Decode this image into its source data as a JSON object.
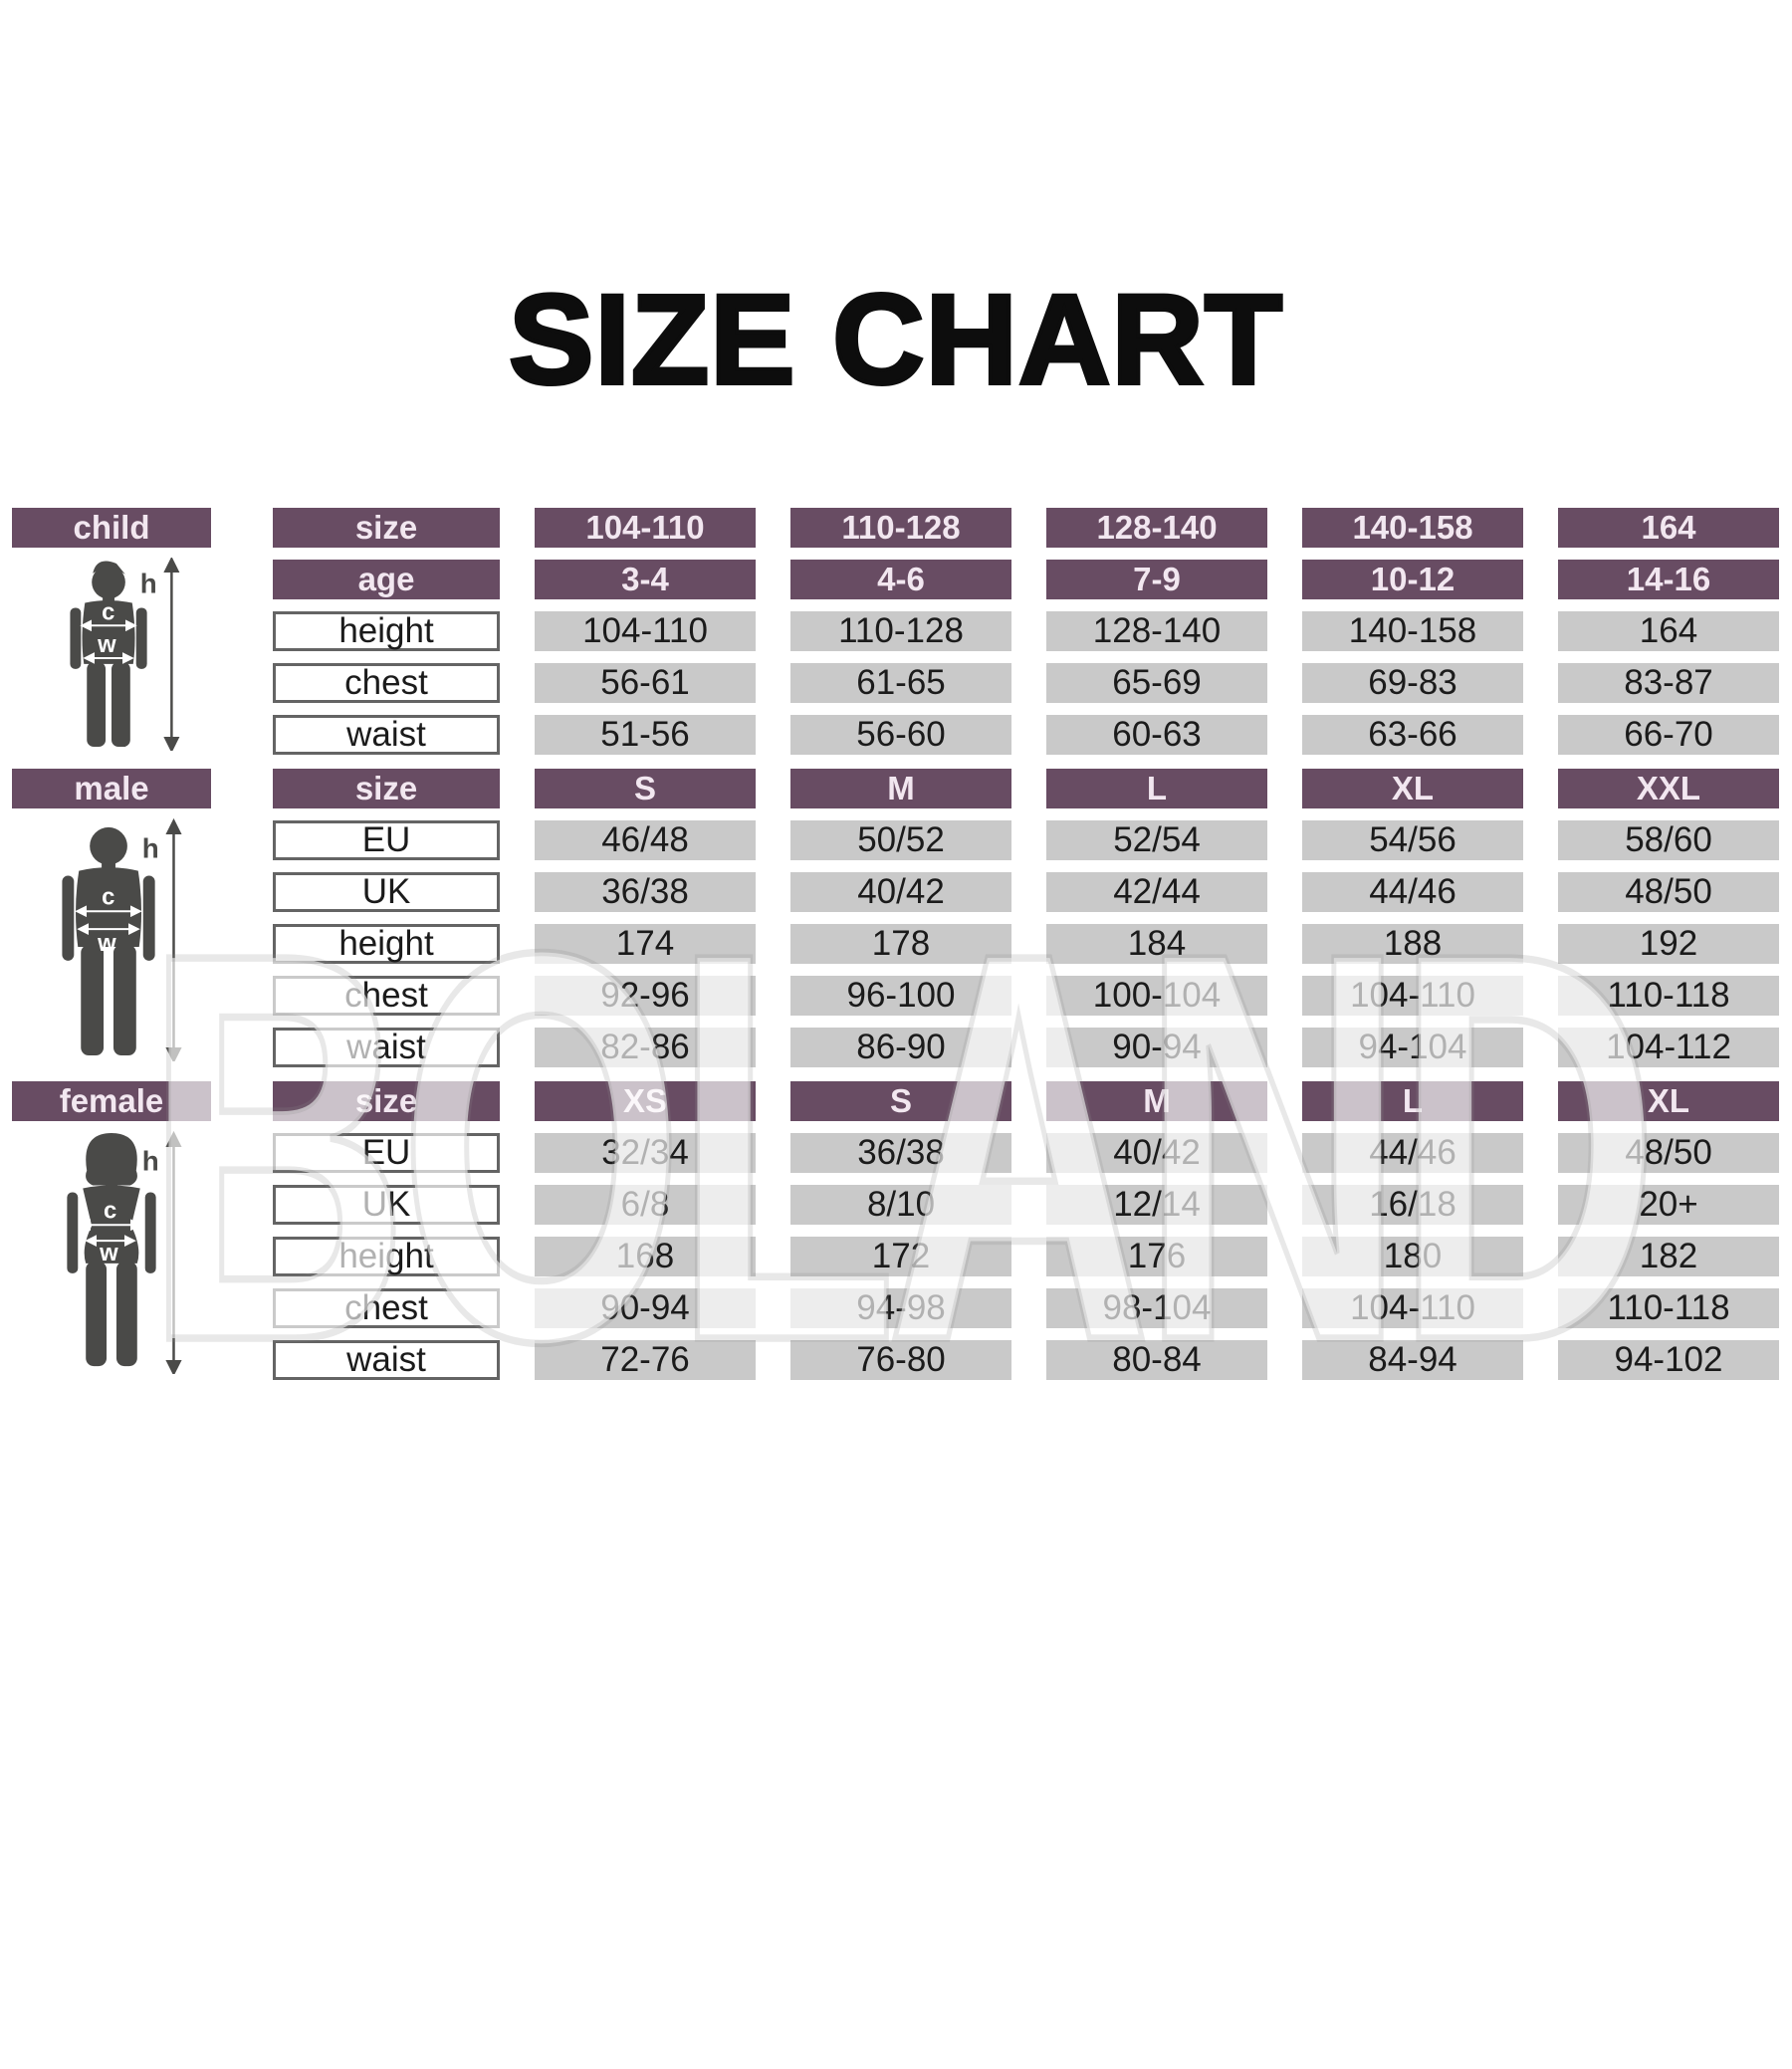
{
  "title": "SIZE CHART",
  "watermark": "BOLAND",
  "colors": {
    "header_purple": "#684c63",
    "header_text": "#f2e7f0",
    "cell_gray": "#c9c9c9",
    "cell_text": "#1b1b1b",
    "attr_border": "#646464",
    "silhouette": "#4a4a48"
  },
  "figure_letters": {
    "height": "h",
    "chest": "c",
    "waist": "w"
  },
  "chart_data": [
    {
      "type": "table",
      "section_label": "child",
      "rows": [
        {
          "kind": "header",
          "label": "size",
          "values": [
            "104-110",
            "110-128",
            "128-140",
            "140-158",
            "164"
          ]
        },
        {
          "kind": "header",
          "label": "age",
          "values": [
            "3-4",
            "4-6",
            "7-9",
            "10-12",
            "14-16"
          ]
        },
        {
          "kind": "attr",
          "label": "height",
          "values": [
            "104-110",
            "110-128",
            "128-140",
            "140-158",
            "164"
          ]
        },
        {
          "kind": "attr",
          "label": "chest",
          "values": [
            "56-61",
            "61-65",
            "65-69",
            "69-83",
            "83-87"
          ]
        },
        {
          "kind": "attr",
          "label": "waist",
          "values": [
            "51-56",
            "56-60",
            "60-63",
            "63-66",
            "66-70"
          ]
        }
      ]
    },
    {
      "type": "table",
      "section_label": "male",
      "rows": [
        {
          "kind": "header",
          "label": "size",
          "values": [
            "S",
            "M",
            "L",
            "XL",
            "XXL"
          ]
        },
        {
          "kind": "attr",
          "label": "EU",
          "values": [
            "46/48",
            "50/52",
            "52/54",
            "54/56",
            "58/60"
          ]
        },
        {
          "kind": "attr",
          "label": "UK",
          "values": [
            "36/38",
            "40/42",
            "42/44",
            "44/46",
            "48/50"
          ]
        },
        {
          "kind": "attr",
          "label": "height",
          "values": [
            "174",
            "178",
            "184",
            "188",
            "192"
          ]
        },
        {
          "kind": "attr",
          "label": "chest",
          "values": [
            "92-96",
            "96-100",
            "100-104",
            "104-110",
            "110-118"
          ]
        },
        {
          "kind": "attr",
          "label": "waist",
          "values": [
            "82-86",
            "86-90",
            "90-94",
            "94-104",
            "104-112"
          ]
        }
      ]
    },
    {
      "type": "table",
      "section_label": "female",
      "rows": [
        {
          "kind": "header",
          "label": "size",
          "values": [
            "XS",
            "S",
            "M",
            "L",
            "XL"
          ]
        },
        {
          "kind": "attr",
          "label": "EU",
          "values": [
            "32/34",
            "36/38",
            "40/42",
            "44/46",
            "48/50"
          ]
        },
        {
          "kind": "attr",
          "label": "UK",
          "values": [
            "6/8",
            "8/10",
            "12/14",
            "16/18",
            "20+"
          ]
        },
        {
          "kind": "attr",
          "label": "height",
          "values": [
            "168",
            "172",
            "176",
            "180",
            "182"
          ]
        },
        {
          "kind": "attr",
          "label": "chest",
          "values": [
            "90-94",
            "94-98",
            "98-104",
            "104-110",
            "110-118"
          ]
        },
        {
          "kind": "attr",
          "label": "waist",
          "values": [
            "72-76",
            "76-80",
            "80-84",
            "84-94",
            "94-102"
          ]
        }
      ]
    }
  ]
}
